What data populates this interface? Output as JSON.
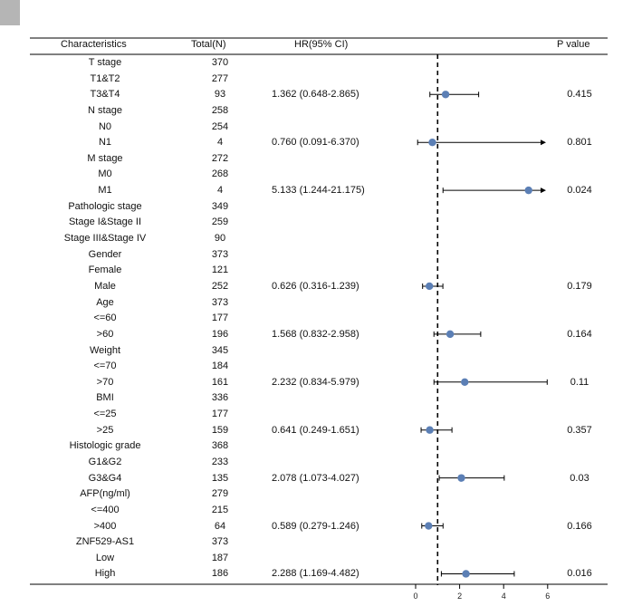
{
  "chart_data": {
    "type": "forest",
    "headers": {
      "characteristics": "Characteristics",
      "total": "Total(N)",
      "hr": "HR(95% CI)",
      "p": "P value"
    },
    "reference_line": 1,
    "xlim": [
      0,
      6
    ],
    "x_ticks": [
      0,
      2,
      4,
      6
    ],
    "rows": [
      {
        "name": "T stage",
        "total": "370"
      },
      {
        "name": "T1&T2",
        "total": "277"
      },
      {
        "name": "T3&T4",
        "total": "93",
        "hr_text": "1.362 (0.648-2.865)",
        "p": "0.415",
        "hr": 1.362,
        "lo": 0.648,
        "hi": 2.865
      },
      {
        "name": "N stage",
        "total": "258"
      },
      {
        "name": "N0",
        "total": "254"
      },
      {
        "name": "N1",
        "total": "4",
        "hr_text": "0.760 (0.091-6.370)",
        "p": "0.801",
        "hr": 0.76,
        "lo": 0.091,
        "hi": 6.37
      },
      {
        "name": "M stage",
        "total": "272"
      },
      {
        "name": "M0",
        "total": "268"
      },
      {
        "name": "M1",
        "total": "4",
        "hr_text": "5.133 (1.244-21.175)",
        "p": "0.024",
        "hr": 5.133,
        "lo": 1.244,
        "hi": 21.175
      },
      {
        "name": "Pathologic stage",
        "total": "349"
      },
      {
        "name": "Stage I&Stage II",
        "total": "259"
      },
      {
        "name": "Stage III&Stage IV",
        "total": "90"
      },
      {
        "name": "Gender",
        "total": "373"
      },
      {
        "name": "Female",
        "total": "121"
      },
      {
        "name": "Male",
        "total": "252",
        "hr_text": "0.626 (0.316-1.239)",
        "p": "0.179",
        "hr": 0.626,
        "lo": 0.316,
        "hi": 1.239
      },
      {
        "name": "Age",
        "total": "373"
      },
      {
        "name": "<=60",
        "total": "177"
      },
      {
        "name": ">60",
        "total": "196",
        "hr_text": "1.568 (0.832-2.958)",
        "p": "0.164",
        "hr": 1.568,
        "lo": 0.832,
        "hi": 2.958
      },
      {
        "name": "Weight",
        "total": "345"
      },
      {
        "name": "<=70",
        "total": "184"
      },
      {
        "name": ">70",
        "total": "161",
        "hr_text": "2.232 (0.834-5.979)",
        "p": "0.11",
        "hr": 2.232,
        "lo": 0.834,
        "hi": 5.979
      },
      {
        "name": "BMI",
        "total": "336"
      },
      {
        "name": "<=25",
        "total": "177"
      },
      {
        "name": ">25",
        "total": "159",
        "hr_text": "0.641 (0.249-1.651)",
        "p": "0.357",
        "hr": 0.641,
        "lo": 0.249,
        "hi": 1.651
      },
      {
        "name": "Histologic grade",
        "total": "368"
      },
      {
        "name": "G1&G2",
        "total": "233"
      },
      {
        "name": "G3&G4",
        "total": "135",
        "hr_text": "2.078 (1.073-4.027)",
        "p": "0.03",
        "hr": 2.078,
        "lo": 1.073,
        "hi": 4.027
      },
      {
        "name": "AFP(ng/ml)",
        "total": "279"
      },
      {
        "name": "<=400",
        "total": "215"
      },
      {
        "name": ">400",
        "total": "64",
        "hr_text": "0.589 (0.279-1.246)",
        "p": "0.166",
        "hr": 0.589,
        "lo": 0.279,
        "hi": 1.246
      },
      {
        "name": "ZNF529-AS1",
        "total": "373"
      },
      {
        "name": "Low",
        "total": "187"
      },
      {
        "name": "High",
        "total": "186",
        "hr_text": "2.288 (1.169-4.482)",
        "p": "0.016",
        "hr": 2.288,
        "lo": 1.169,
        "hi": 4.482
      }
    ],
    "colors": {
      "point": "#5b7fb5",
      "line": "#000000"
    }
  }
}
